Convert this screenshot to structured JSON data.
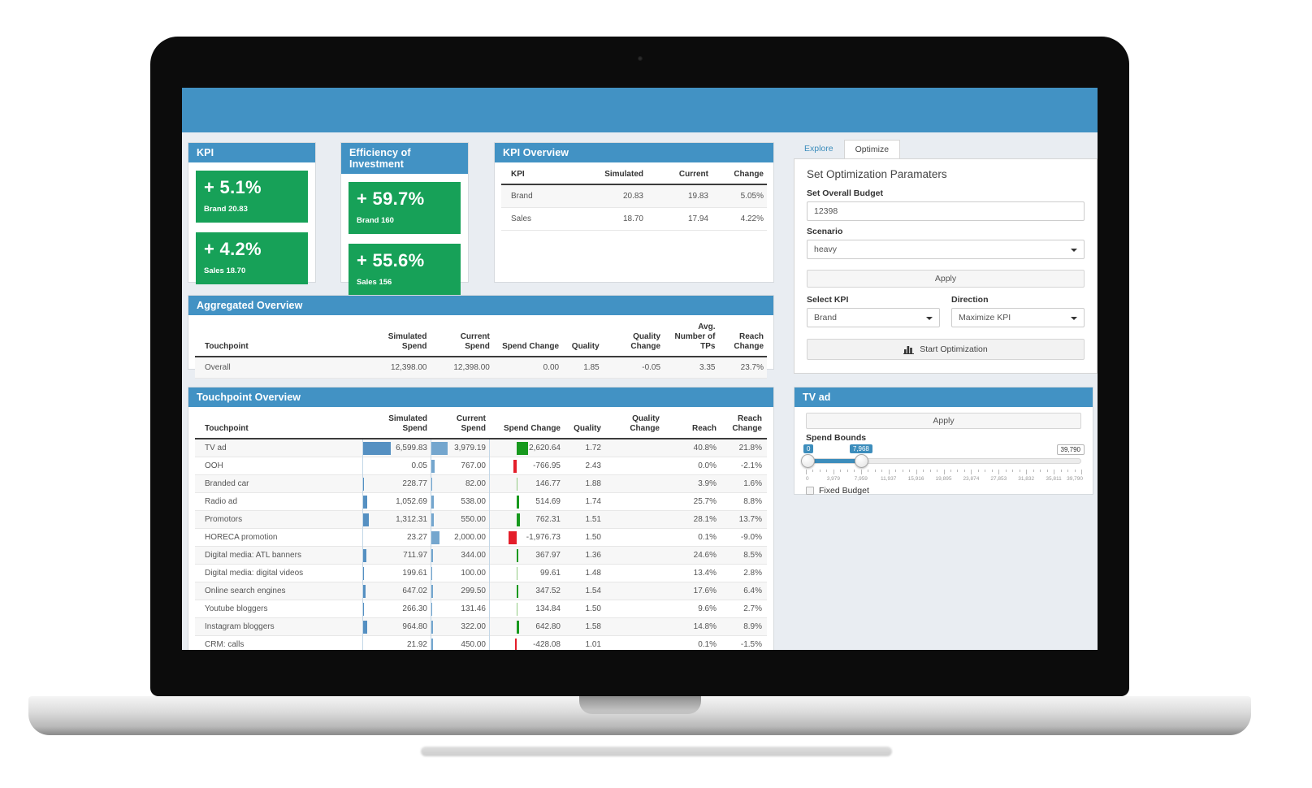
{
  "colors": {
    "header_blue": "#4292c4",
    "green_card": "#17a158",
    "bar_blue": "#5590c2",
    "bar_blue_light": "#74a6ce",
    "bar_green": "#18991e",
    "bar_green_light": "#93cb84",
    "bar_red": "#e41e2a",
    "link_blue": "#3c8dbc"
  },
  "kpi_panel": {
    "title": "KPI",
    "cards": [
      {
        "value": "+ 5.1%",
        "label": "Brand 20.83"
      },
      {
        "value": "+ 4.2%",
        "label": "Sales 18.70"
      }
    ]
  },
  "efficiency_panel": {
    "title": "Efficiency of Investment",
    "cards": [
      {
        "value": "+ 59.7%",
        "label": "Brand 160"
      },
      {
        "value": "+ 55.6%",
        "label": "Sales 156"
      }
    ]
  },
  "kpi_overview": {
    "title": "KPI Overview",
    "columns": [
      "KPI",
      "Simulated",
      "Current",
      "Change"
    ],
    "rows": [
      [
        "Brand",
        "20.83",
        "19.83",
        "5.05%"
      ],
      [
        "Sales",
        "18.70",
        "17.94",
        "4.22%"
      ]
    ]
  },
  "aggregated_overview": {
    "title": "Aggregated Overview",
    "columns": [
      "Touchpoint",
      "Simulated Spend",
      "Current Spend",
      "Spend Change",
      "Quality",
      "Quality Change",
      "Avg. Number of TPs",
      "Reach Change"
    ],
    "rows": [
      [
        "Overall",
        "12,398.00",
        "12,398.00",
        "0.00",
        "1.85",
        "-0.05",
        "3.35",
        "23.7%"
      ]
    ]
  },
  "touchpoint_overview": {
    "title": "Touchpoint Overview",
    "columns": [
      "Touchpoint",
      "Simulated Spend",
      "Current Spend",
      "Spend Change",
      "Quality",
      "Quality Change",
      "Reach",
      "Reach Change"
    ],
    "rows": [
      {
        "name": "TV ad",
        "sim": 6599.83,
        "sim_label": "6,599.83",
        "cur": 3979.19,
        "cur_label": "3,979.19",
        "chg": 2620.64,
        "chg_label": "2,620.64",
        "chg_color": "green",
        "quality": "1.72",
        "quality_change": "",
        "reach": "40.8%",
        "reach_change": "21.8%"
      },
      {
        "name": "OOH",
        "sim": 0.05,
        "sim_label": "0.05",
        "cur": 767.0,
        "cur_label": "767.00",
        "chg": -766.95,
        "chg_label": "-766.95",
        "chg_color": "red",
        "quality": "2.43",
        "quality_change": "",
        "reach": "0.0%",
        "reach_change": "-2.1%"
      },
      {
        "name": "Branded car",
        "sim": 228.77,
        "sim_label": "228.77",
        "cur": 82.0,
        "cur_label": "82.00",
        "chg": 146.77,
        "chg_label": "146.77",
        "chg_color": "lightgreen",
        "quality": "1.88",
        "quality_change": "",
        "reach": "3.9%",
        "reach_change": "1.6%"
      },
      {
        "name": "Radio ad",
        "sim": 1052.69,
        "sim_label": "1,052.69",
        "cur": 538.0,
        "cur_label": "538.00",
        "chg": 514.69,
        "chg_label": "514.69",
        "chg_color": "green",
        "quality": "1.74",
        "quality_change": "",
        "reach": "25.7%",
        "reach_change": "8.8%"
      },
      {
        "name": "Promotors",
        "sim": 1312.31,
        "sim_label": "1,312.31",
        "cur": 550.0,
        "cur_label": "550.00",
        "chg": 762.31,
        "chg_label": "762.31",
        "chg_color": "green",
        "quality": "1.51",
        "quality_change": "",
        "reach": "28.1%",
        "reach_change": "13.7%"
      },
      {
        "name": "HORECA promotion",
        "sim": 23.27,
        "sim_label": "23.27",
        "cur": 2000.0,
        "cur_label": "2,000.00",
        "chg": -1976.73,
        "chg_label": "-1,976.73",
        "chg_color": "red",
        "quality": "1.50",
        "quality_change": "",
        "reach": "0.1%",
        "reach_change": "-9.0%"
      },
      {
        "name": "Digital media: ATL banners",
        "sim": 711.97,
        "sim_label": "711.97",
        "cur": 344.0,
        "cur_label": "344.00",
        "chg": 367.97,
        "chg_label": "367.97",
        "chg_color": "green",
        "quality": "1.36",
        "quality_change": "",
        "reach": "24.6%",
        "reach_change": "8.5%"
      },
      {
        "name": "Digital media: digital videos",
        "sim": 199.61,
        "sim_label": "199.61",
        "cur": 100.0,
        "cur_label": "100.00",
        "chg": 99.61,
        "chg_label": "99.61",
        "chg_color": "lightgreen",
        "quality": "1.48",
        "quality_change": "",
        "reach": "13.4%",
        "reach_change": "2.8%"
      },
      {
        "name": "Online search engines",
        "sim": 647.02,
        "sim_label": "647.02",
        "cur": 299.5,
        "cur_label": "299.50",
        "chg": 347.52,
        "chg_label": "347.52",
        "chg_color": "green",
        "quality": "1.54",
        "quality_change": "",
        "reach": "17.6%",
        "reach_change": "6.4%"
      },
      {
        "name": "Youtube bloggers",
        "sim": 266.3,
        "sim_label": "266.30",
        "cur": 131.46,
        "cur_label": "131.46",
        "chg": 134.84,
        "chg_label": "134.84",
        "chg_color": "lightgreen",
        "quality": "1.50",
        "quality_change": "",
        "reach": "9.6%",
        "reach_change": "2.7%"
      },
      {
        "name": "Instagram bloggers",
        "sim": 964.8,
        "sim_label": "964.80",
        "cur": 322.0,
        "cur_label": "322.00",
        "chg": 642.8,
        "chg_label": "642.80",
        "chg_color": "green",
        "quality": "1.58",
        "quality_change": "",
        "reach": "14.8%",
        "reach_change": "8.9%"
      },
      {
        "name": "CRM: calls",
        "sim": 21.92,
        "sim_label": "21.92",
        "cur": 450.0,
        "cur_label": "450.00",
        "chg": -428.08,
        "chg_label": "-428.08",
        "chg_color": "red",
        "quality": "1.01",
        "quality_change": "",
        "reach": "0.1%",
        "reach_change": "-1.5%"
      }
    ]
  },
  "optimize_panel": {
    "tabs": {
      "explore": "Explore",
      "optimize": "Optimize"
    },
    "heading": "Set Optimization Paramaters",
    "budget_label": "Set Overall Budget",
    "budget_value": "12398",
    "scenario_label": "Scenario",
    "scenario_value": "heavy",
    "apply_label": "Apply",
    "select_kpi_label": "Select KPI",
    "select_kpi_value": "Brand",
    "direction_label": "Direction",
    "direction_value": "Maximize KPI",
    "start_label": "Start Optimization"
  },
  "tvad_panel": {
    "title": "TV ad",
    "apply_label": "Apply",
    "bounds_label": "Spend Bounds",
    "slider": {
      "lower_value": 0,
      "upper_value": 7968,
      "max_value": 39790,
      "lower_label": "0",
      "upper_label": "7,968",
      "max_label": "39,790",
      "tick_labels": [
        "0",
        "3,979",
        "7,959",
        "11,937",
        "15,916",
        "19,895",
        "23,874",
        "27,853",
        "31,832",
        "35,811",
        "39,790"
      ]
    },
    "fixed_budget_label": "Fixed Budget",
    "fixed_budget_checked": false
  }
}
